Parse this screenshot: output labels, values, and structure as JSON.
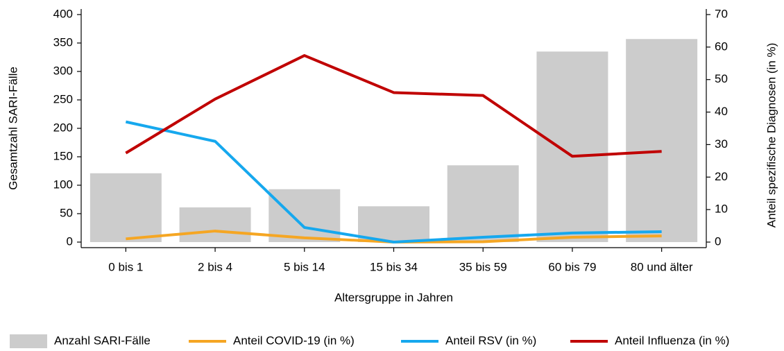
{
  "chart_data": {
    "type": "bar_line",
    "x_label": "Altersgruppe in Jahren",
    "y_label": "Gesamtzahl SARI-Fälle",
    "y2_label": "Anteil spezifische Diagnosen (in %)",
    "categories": [
      "0 bis 1",
      "2 bis 4",
      "5 bis 14",
      "15 bis 34",
      "35 bis 59",
      "60 bis 79",
      "80 und älter"
    ],
    "series": [
      {
        "name": "Anzahl SARI-Fälle",
        "type": "bar",
        "color": "#cccccc",
        "values": [
          121,
          61,
          93,
          63,
          135,
          335,
          357
        ]
      },
      {
        "name": "Anteil COVID-19 (in %)",
        "type": "line",
        "axis": "y2",
        "color": "#f5a623",
        "values": [
          1,
          3.4,
          1.3,
          0,
          0.1,
          1.5,
          1.9
        ]
      },
      {
        "name": "Anteil RSV (in %)",
        "type": "line",
        "axis": "y2",
        "color": "#16a8ee",
        "values": [
          37,
          31,
          4.5,
          0,
          1.5,
          2.8,
          3.2
        ]
      },
      {
        "name": "Anteil Influenza (in %)",
        "type": "line",
        "axis": "y2",
        "color": "#c00000",
        "values": [
          27.4,
          44,
          57.4,
          46,
          45.1,
          26.4,
          27.9
        ]
      }
    ],
    "ylim": [
      0,
      400
    ],
    "yticks": [
      0,
      50,
      100,
      150,
      200,
      250,
      300,
      350,
      400
    ],
    "y2lim": [
      0,
      70
    ],
    "y2ticks": [
      0,
      10,
      20,
      30,
      40,
      50,
      60,
      70
    ],
    "legend": "bottom"
  }
}
